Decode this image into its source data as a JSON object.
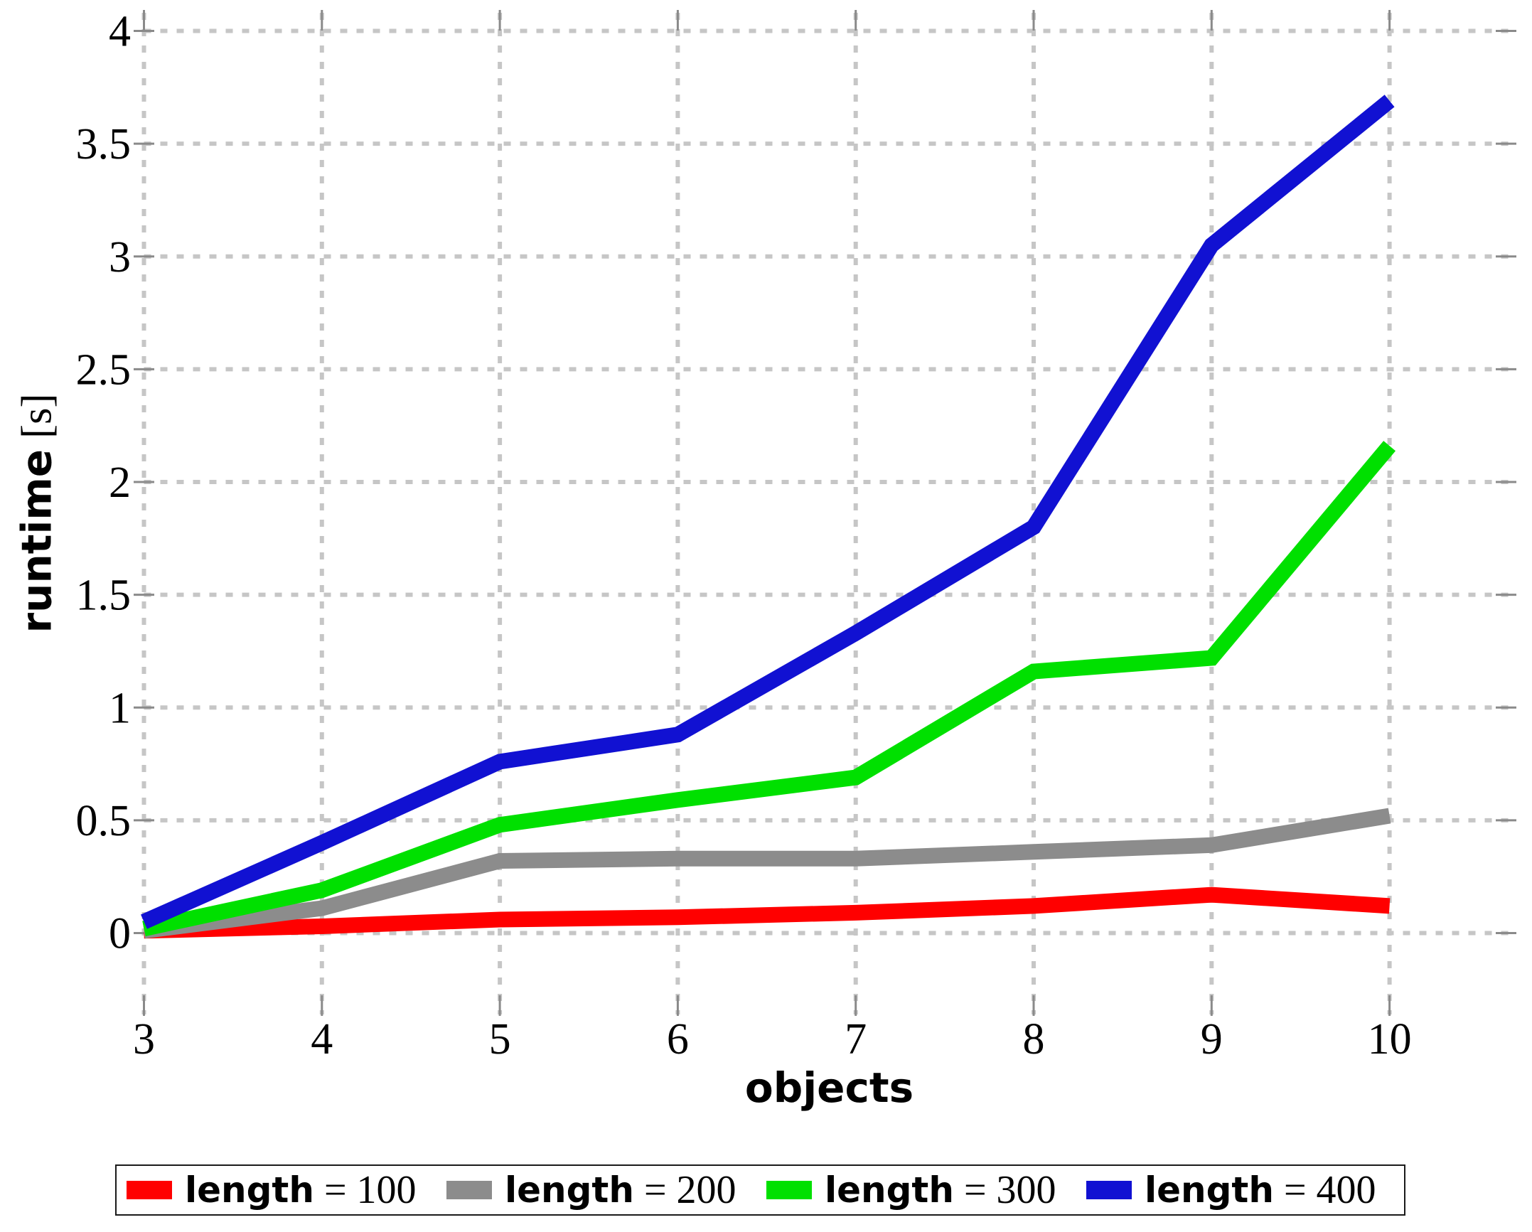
{
  "page": {
    "background": "#ffffff"
  },
  "chart_data": {
    "type": "line",
    "title": "",
    "xlabel": "objects",
    "ylabel": "runtime [s]",
    "ylabel_bold": "runtime",
    "ylabel_unit": "[s]",
    "x": [
      3,
      4,
      5,
      6,
      7,
      8,
      9,
      10
    ],
    "xtick_labels": [
      "3",
      "4",
      "5",
      "6",
      "7",
      "8",
      "9",
      "10"
    ],
    "yticks": [
      0,
      0.5,
      1,
      1.5,
      2,
      2.5,
      3,
      3.5,
      4
    ],
    "ytick_labels": [
      "0",
      "0.5",
      "1",
      "1.5",
      "2",
      "2.5",
      "3",
      "3.5",
      "4"
    ],
    "xlim": [
      3,
      10
    ],
    "ylim": [
      0,
      4
    ],
    "grid": true,
    "grid_style": "dashed",
    "legend_position": "bottom",
    "axis_colors": {
      "grid": "#c6c6c6",
      "tick": "#8a8a8a",
      "text": "#000000"
    },
    "series": [
      {
        "name": "length = 100",
        "label_bold": "length",
        "label_rest": "= 100",
        "color": "#ff0000",
        "values": [
          0.01,
          0.03,
          0.06,
          0.07,
          0.09,
          0.12,
          0.17,
          0.12
        ]
      },
      {
        "name": "length = 200",
        "label_bold": "length",
        "label_rest": "= 200",
        "color": "#8c8c8c",
        "values": [
          0.01,
          0.11,
          0.32,
          0.33,
          0.33,
          0.36,
          0.39,
          0.52
        ]
      },
      {
        "name": "length = 300",
        "label_bold": "length",
        "label_rest": "= 300",
        "color": "#00e000",
        "values": [
          0.02,
          0.19,
          0.48,
          0.59,
          0.69,
          1.16,
          1.22,
          2.16
        ]
      },
      {
        "name": "length = 400",
        "label_bold": "length",
        "label_rest": "= 400",
        "color": "#1111d2",
        "values": [
          0.05,
          0.4,
          0.76,
          0.88,
          1.33,
          1.8,
          3.05,
          3.69
        ]
      }
    ]
  }
}
